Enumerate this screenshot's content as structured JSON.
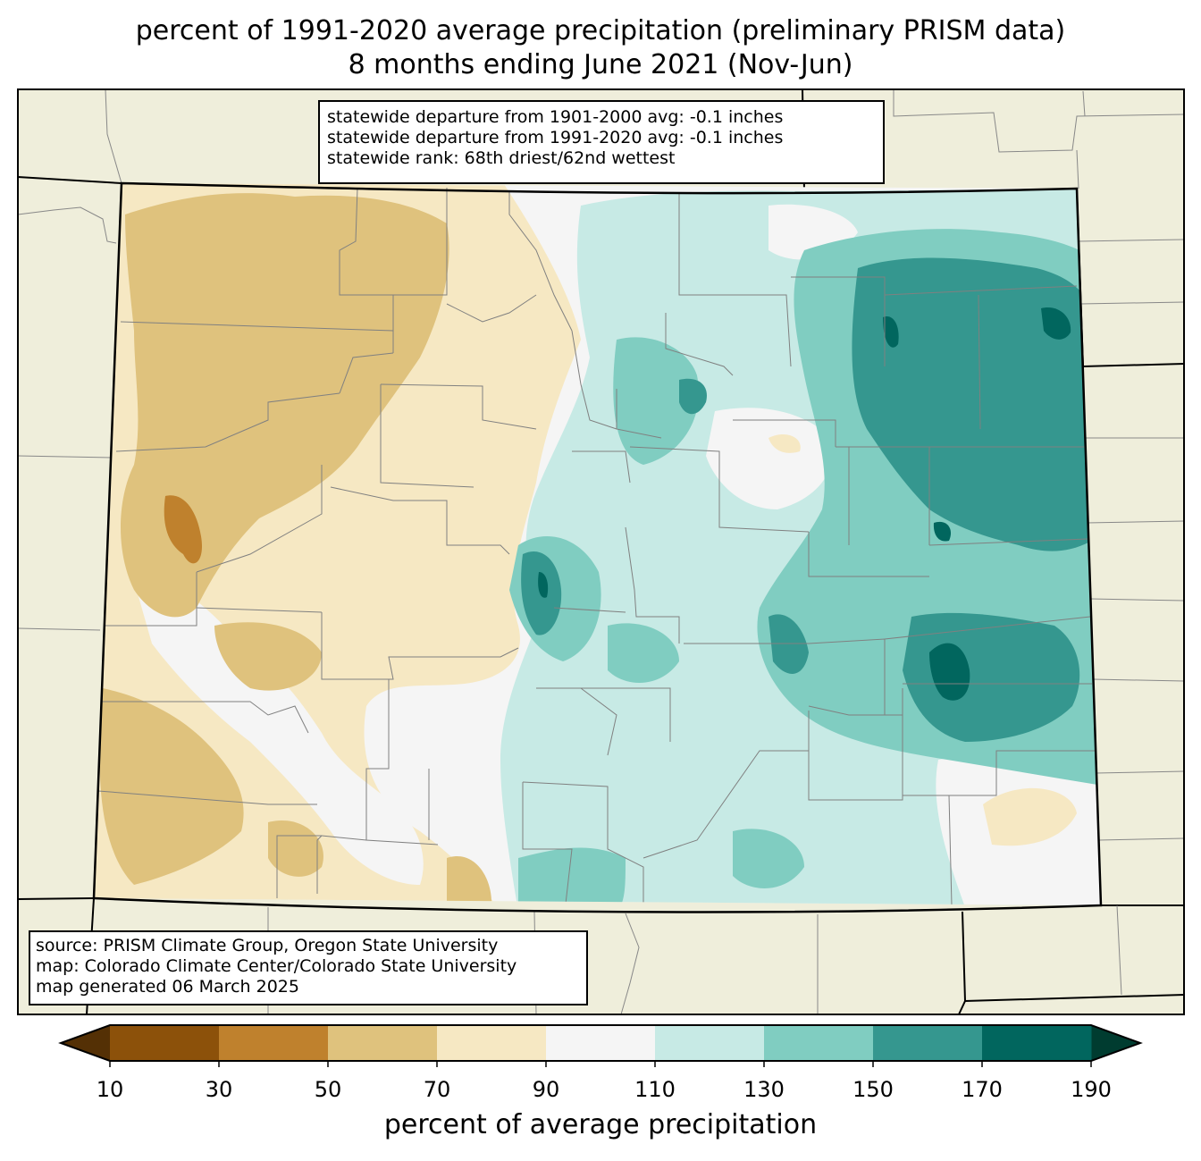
{
  "title_line1": "percent of 1991-2020 average precipitation (preliminary PRISM data)",
  "title_line2": "8 months ending June 2021 (Nov-Jun)",
  "stats": [
    "statewide departure from 1901-2000 avg: -0.1 inches",
    "statewide departure from 1991-2020 avg: -0.1 inches",
    "statewide rank: 68th driest/62nd wettest"
  ],
  "source": [
    "source: PRISM Climate Group, Oregon State University",
    "map: Colorado Climate Center/Colorado State University",
    "map generated 06 March 2025"
  ],
  "colorbar": {
    "title": "percent of average precipitation",
    "ticks": [
      "10",
      "30",
      "50",
      "70",
      "90",
      "110",
      "130",
      "150",
      "170",
      "190"
    ],
    "under_color": "#543005",
    "over_color": "#003c30",
    "colors": [
      "#8c510a",
      "#bf812d",
      "#dfc27d",
      "#f6e8c3",
      "#f5f5f5",
      "#c7eae5",
      "#80cdc1",
      "#35978f",
      "#01665e"
    ]
  },
  "map_colors": {
    "background": "#efeedb",
    "dry_light": "#f6e8c3",
    "dry_med": "#dfc27d",
    "dry_strong": "#bf812d",
    "normal": "#f5f5f5",
    "wet_light": "#c7eae5",
    "wet_med": "#80cdc1",
    "wet_strong": "#35978f",
    "wet_very": "#01665e"
  }
}
